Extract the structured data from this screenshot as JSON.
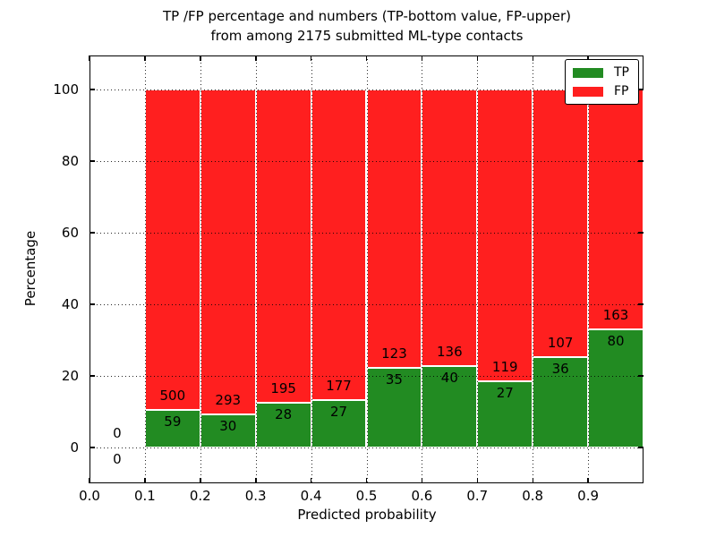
{
  "figure": {
    "title_line1": "TP /FP percentage and numbers (TP-bottom value, FP-upper)",
    "title_line2": "from among 2175 submitted ML-type contacts"
  },
  "chart_data": {
    "type": "bar",
    "stacked": true,
    "title": "TP /FP percentage and numbers (TP-bottom value, FP-upper) from among 2175 submitted ML-type contacts",
    "xlabel": "Predicted probability",
    "ylabel": "Percentage",
    "xlim": [
      0.0,
      1.0
    ],
    "ylim": [
      -10,
      110
    ],
    "grid": "dotted",
    "bin_width": 0.1,
    "bins_start": [
      0.0,
      0.1,
      0.2,
      0.3,
      0.4,
      0.5,
      0.6,
      0.7,
      0.8,
      0.9
    ],
    "x_tick_labels": [
      "0.0",
      "0.1",
      "0.2",
      "0.3",
      "0.4",
      "0.5",
      "0.6",
      "0.7",
      "0.8",
      "0.9"
    ],
    "y_tick_values": [
      0,
      20,
      40,
      60,
      80,
      100
    ],
    "y_tick_labels": [
      "0",
      "20",
      "40",
      "60",
      "80",
      "100"
    ],
    "bar_representation": "green bottom segment height = TP/(TP+FP)*100 percent, red top segment fills to 100 percent; labels show raw counts",
    "series": [
      {
        "name": "TP",
        "color": "#228b22",
        "values": [
          0,
          59,
          30,
          28,
          27,
          35,
          40,
          27,
          36,
          80
        ]
      },
      {
        "name": "FP",
        "color": "#ff1f1f",
        "values": [
          0,
          500,
          293,
          195,
          177,
          123,
          136,
          119,
          107,
          163
        ]
      }
    ],
    "legend": {
      "position": "upper right",
      "entries": [
        "TP",
        "FP"
      ]
    }
  }
}
